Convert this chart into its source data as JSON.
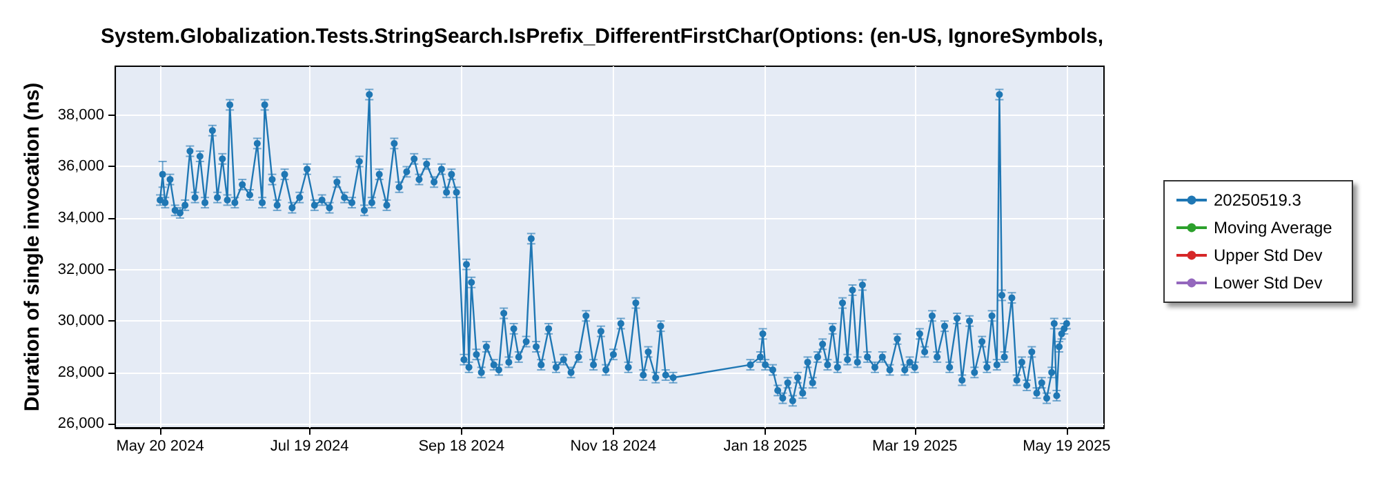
{
  "chart_data": {
    "type": "line",
    "title": "System.Globalization.Tests.StringSearch.IsPrefix_DifferentFirstChar(Options: (en-US, IgnoreSymbols,",
    "ylabel": "Duration of single invocation (ns)",
    "xlim": [
      "2024-05-02",
      "2025-06-03"
    ],
    "ylim": [
      25850,
      39900
    ],
    "xticks": [
      {
        "value": "2024-05-20",
        "label": "May 20 2024"
      },
      {
        "value": "2024-07-19",
        "label": "Jul 19 2024"
      },
      {
        "value": "2024-09-18",
        "label": "Sep 18 2024"
      },
      {
        "value": "2024-11-18",
        "label": "Nov 18 2024"
      },
      {
        "value": "2025-01-18",
        "label": "Jan 18 2025"
      },
      {
        "value": "2025-03-19",
        "label": "Mar 19 2025"
      },
      {
        "value": "2025-05-19",
        "label": "May 19 2025"
      }
    ],
    "yticks": [
      {
        "value": 26000,
        "label": "26,000"
      },
      {
        "value": 28000,
        "label": "28,000"
      },
      {
        "value": 30000,
        "label": "30,000"
      },
      {
        "value": 32000,
        "label": "32,000"
      },
      {
        "value": 34000,
        "label": "34,000"
      },
      {
        "value": 36000,
        "label": "36,000"
      },
      {
        "value": 38000,
        "label": "38,000"
      }
    ],
    "grid": true,
    "legend": "right",
    "marker": "circle",
    "series": [
      {
        "name": "20250519.3",
        "color": "#1f77b4",
        "x": [
          "2024-05-20",
          "2024-05-21",
          "2024-05-22",
          "2024-05-24",
          "2024-05-26",
          "2024-05-28",
          "2024-05-30",
          "2024-06-01",
          "2024-06-03",
          "2024-06-05",
          "2024-06-07",
          "2024-06-10",
          "2024-06-12",
          "2024-06-14",
          "2024-06-16",
          "2024-06-17",
          "2024-06-19",
          "2024-06-22",
          "2024-06-25",
          "2024-06-28",
          "2024-06-30",
          "2024-07-01",
          "2024-07-04",
          "2024-07-06",
          "2024-07-09",
          "2024-07-12",
          "2024-07-15",
          "2024-07-18",
          "2024-07-21",
          "2024-07-24",
          "2024-07-27",
          "2024-07-30",
          "2024-08-02",
          "2024-08-05",
          "2024-08-08",
          "2024-08-10",
          "2024-08-12",
          "2024-08-13",
          "2024-08-16",
          "2024-08-19",
          "2024-08-22",
          "2024-08-24",
          "2024-08-27",
          "2024-08-30",
          "2024-09-01",
          "2024-09-04",
          "2024-09-07",
          "2024-09-10",
          "2024-09-12",
          "2024-09-14",
          "2024-09-16",
          "2024-09-19",
          "2024-09-20",
          "2024-09-21",
          "2024-09-22",
          "2024-09-24",
          "2024-09-26",
          "2024-09-28",
          "2024-10-01",
          "2024-10-03",
          "2024-10-05",
          "2024-10-07",
          "2024-10-09",
          "2024-10-11",
          "2024-10-14",
          "2024-10-16",
          "2024-10-18",
          "2024-10-20",
          "2024-10-23",
          "2024-10-26",
          "2024-10-29",
          "2024-11-01",
          "2024-11-04",
          "2024-11-07",
          "2024-11-10",
          "2024-11-13",
          "2024-11-15",
          "2024-11-18",
          "2024-11-21",
          "2024-11-24",
          "2024-11-27",
          "2024-11-30",
          "2024-12-02",
          "2024-12-05",
          "2024-12-07",
          "2024-12-09",
          "2024-12-12",
          "2025-01-12",
          "2025-01-16",
          "2025-01-17",
          "2025-01-18",
          "2025-01-21",
          "2025-01-23",
          "2025-01-25",
          "2025-01-27",
          "2025-01-29",
          "2025-01-31",
          "2025-02-02",
          "2025-02-04",
          "2025-02-06",
          "2025-02-08",
          "2025-02-10",
          "2025-02-12",
          "2025-02-14",
          "2025-02-16",
          "2025-02-18",
          "2025-02-20",
          "2025-02-22",
          "2025-02-24",
          "2025-02-26",
          "2025-02-28",
          "2025-03-03",
          "2025-03-06",
          "2025-03-09",
          "2025-03-12",
          "2025-03-15",
          "2025-03-17",
          "2025-03-19",
          "2025-03-21",
          "2025-03-23",
          "2025-03-26",
          "2025-03-28",
          "2025-03-31",
          "2025-04-02",
          "2025-04-05",
          "2025-04-07",
          "2025-04-10",
          "2025-04-12",
          "2025-04-15",
          "2025-04-17",
          "2025-04-19",
          "2025-04-21",
          "2025-04-22",
          "2025-04-23",
          "2025-04-24",
          "2025-04-27",
          "2025-04-29",
          "2025-05-01",
          "2025-05-03",
          "2025-05-05",
          "2025-05-07",
          "2025-05-09",
          "2025-05-11",
          "2025-05-13",
          "2025-05-14",
          "2025-05-15",
          "2025-05-16",
          "2025-05-17",
          "2025-05-18",
          "2025-05-19"
        ],
        "values": [
          34700,
          35700,
          34600,
          35500,
          34300,
          34200,
          34500,
          36600,
          34800,
          36400,
          34600,
          37400,
          34800,
          36300,
          34700,
          38400,
          34600,
          35300,
          34900,
          36900,
          34600,
          38400,
          35500,
          34500,
          35700,
          34400,
          34800,
          35900,
          34500,
          34700,
          34400,
          35400,
          34800,
          34600,
          36200,
          34300,
          38800,
          34600,
          35700,
          34500,
          36900,
          35200,
          35800,
          36300,
          35500,
          36100,
          35400,
          35900,
          35000,
          35700,
          35000,
          28500,
          32200,
          28200,
          31500,
          28700,
          28000,
          29000,
          28300,
          28100,
          30300,
          28400,
          29700,
          28600,
          29200,
          33200,
          29000,
          28300,
          29700,
          28200,
          28500,
          28000,
          28600,
          30200,
          28300,
          29600,
          28100,
          28700,
          29900,
          28200,
          30700,
          27900,
          28800,
          27800,
          29800,
          27900,
          27800,
          28300,
          28600,
          29500,
          28300,
          28100,
          27300,
          27000,
          27600,
          26900,
          27800,
          27200,
          28400,
          27600,
          28600,
          29100,
          28300,
          29700,
          28200,
          30700,
          28500,
          31200,
          28400,
          31400,
          28600,
          28200,
          28600,
          28100,
          29300,
          28100,
          28400,
          28200,
          29500,
          28800,
          30200,
          28600,
          29800,
          28200,
          30100,
          27700,
          30000,
          28000,
          29200,
          28200,
          30200,
          28300,
          38800,
          31000,
          28600,
          30900,
          27700,
          28400,
          27500,
          28800,
          27200,
          27600,
          27000,
          28000,
          29900,
          27100,
          29000,
          29500,
          29700,
          29900
        ],
        "errors": [
          200,
          500,
          200,
          200,
          200,
          200,
          200,
          200,
          200,
          200,
          200,
          200,
          200,
          200,
          200,
          200,
          200,
          200,
          200,
          200,
          200,
          200,
          200,
          200,
          200,
          200,
          200,
          200,
          200,
          200,
          200,
          200,
          200,
          200,
          200,
          200,
          200,
          200,
          200,
          200,
          200,
          200,
          200,
          200,
          200,
          200,
          200,
          200,
          200,
          200,
          200,
          200,
          200,
          200,
          200,
          200,
          200,
          200,
          200,
          200,
          200,
          200,
          200,
          200,
          200,
          200,
          200,
          200,
          200,
          200,
          200,
          200,
          200,
          200,
          200,
          200,
          200,
          200,
          200,
          200,
          200,
          200,
          200,
          200,
          200,
          200,
          200,
          200,
          200,
          200,
          200,
          200,
          200,
          200,
          200,
          200,
          200,
          200,
          200,
          200,
          200,
          200,
          200,
          200,
          200,
          200,
          200,
          200,
          200,
          200,
          200,
          200,
          200,
          200,
          200,
          200,
          200,
          200,
          200,
          200,
          200,
          200,
          200,
          200,
          200,
          200,
          200,
          200,
          200,
          200,
          200,
          200,
          200,
          200,
          200,
          200,
          200,
          200,
          200,
          200,
          200,
          200,
          200,
          200,
          200,
          200,
          200,
          200,
          200,
          200
        ]
      },
      {
        "name": "Moving Average",
        "color": "#2ca02c"
      },
      {
        "name": "Upper Std Dev",
        "color": "#d62728"
      },
      {
        "name": "Lower Std Dev",
        "color": "#9467bd"
      }
    ]
  }
}
